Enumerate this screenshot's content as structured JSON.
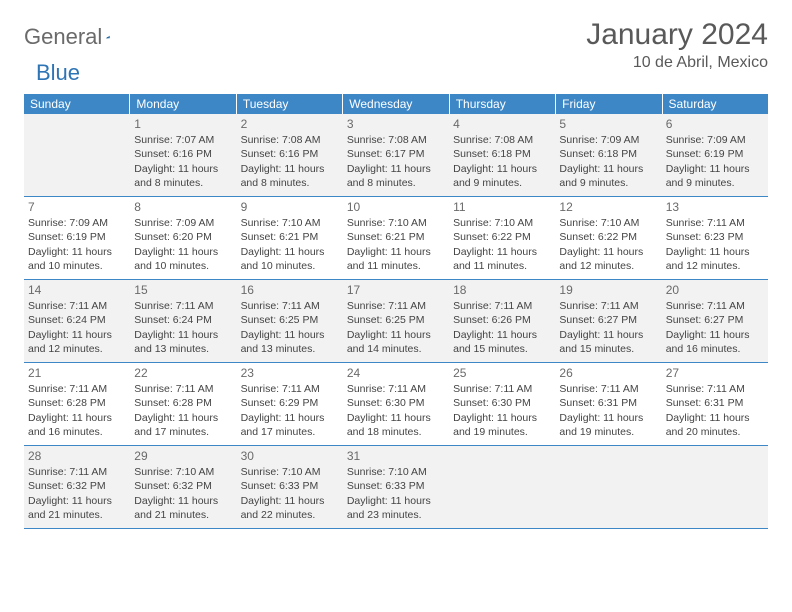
{
  "logo": {
    "general": "General",
    "blue": "Blue"
  },
  "title": "January 2024",
  "location": "10 de Abril, Mexico",
  "colors": {
    "header_bg": "#3d87c7",
    "header_text": "#ffffff",
    "shaded_bg": "#f2f2f2",
    "text": "#444444",
    "title_text": "#595959",
    "logo_gray": "#6a6a6a",
    "logo_blue": "#2e75b6",
    "border": "#3d87c7"
  },
  "weekdays": [
    "Sunday",
    "Monday",
    "Tuesday",
    "Wednesday",
    "Thursday",
    "Friday",
    "Saturday"
  ],
  "weeks": [
    [
      {
        "num": "",
        "lines": []
      },
      {
        "num": "1",
        "lines": [
          "Sunrise: 7:07 AM",
          "Sunset: 6:16 PM",
          "Daylight: 11 hours and 8 minutes."
        ]
      },
      {
        "num": "2",
        "lines": [
          "Sunrise: 7:08 AM",
          "Sunset: 6:16 PM",
          "Daylight: 11 hours and 8 minutes."
        ]
      },
      {
        "num": "3",
        "lines": [
          "Sunrise: 7:08 AM",
          "Sunset: 6:17 PM",
          "Daylight: 11 hours and 8 minutes."
        ]
      },
      {
        "num": "4",
        "lines": [
          "Sunrise: 7:08 AM",
          "Sunset: 6:18 PM",
          "Daylight: 11 hours and 9 minutes."
        ]
      },
      {
        "num": "5",
        "lines": [
          "Sunrise: 7:09 AM",
          "Sunset: 6:18 PM",
          "Daylight: 11 hours and 9 minutes."
        ]
      },
      {
        "num": "6",
        "lines": [
          "Sunrise: 7:09 AM",
          "Sunset: 6:19 PM",
          "Daylight: 11 hours and 9 minutes."
        ]
      }
    ],
    [
      {
        "num": "7",
        "lines": [
          "Sunrise: 7:09 AM",
          "Sunset: 6:19 PM",
          "Daylight: 11 hours and 10 minutes."
        ]
      },
      {
        "num": "8",
        "lines": [
          "Sunrise: 7:09 AM",
          "Sunset: 6:20 PM",
          "Daylight: 11 hours and 10 minutes."
        ]
      },
      {
        "num": "9",
        "lines": [
          "Sunrise: 7:10 AM",
          "Sunset: 6:21 PM",
          "Daylight: 11 hours and 10 minutes."
        ]
      },
      {
        "num": "10",
        "lines": [
          "Sunrise: 7:10 AM",
          "Sunset: 6:21 PM",
          "Daylight: 11 hours and 11 minutes."
        ]
      },
      {
        "num": "11",
        "lines": [
          "Sunrise: 7:10 AM",
          "Sunset: 6:22 PM",
          "Daylight: 11 hours and 11 minutes."
        ]
      },
      {
        "num": "12",
        "lines": [
          "Sunrise: 7:10 AM",
          "Sunset: 6:22 PM",
          "Daylight: 11 hours and 12 minutes."
        ]
      },
      {
        "num": "13",
        "lines": [
          "Sunrise: 7:11 AM",
          "Sunset: 6:23 PM",
          "Daylight: 11 hours and 12 minutes."
        ]
      }
    ],
    [
      {
        "num": "14",
        "lines": [
          "Sunrise: 7:11 AM",
          "Sunset: 6:24 PM",
          "Daylight: 11 hours and 12 minutes."
        ]
      },
      {
        "num": "15",
        "lines": [
          "Sunrise: 7:11 AM",
          "Sunset: 6:24 PM",
          "Daylight: 11 hours and 13 minutes."
        ]
      },
      {
        "num": "16",
        "lines": [
          "Sunrise: 7:11 AM",
          "Sunset: 6:25 PM",
          "Daylight: 11 hours and 13 minutes."
        ]
      },
      {
        "num": "17",
        "lines": [
          "Sunrise: 7:11 AM",
          "Sunset: 6:25 PM",
          "Daylight: 11 hours and 14 minutes."
        ]
      },
      {
        "num": "18",
        "lines": [
          "Sunrise: 7:11 AM",
          "Sunset: 6:26 PM",
          "Daylight: 11 hours and 15 minutes."
        ]
      },
      {
        "num": "19",
        "lines": [
          "Sunrise: 7:11 AM",
          "Sunset: 6:27 PM",
          "Daylight: 11 hours and 15 minutes."
        ]
      },
      {
        "num": "20",
        "lines": [
          "Sunrise: 7:11 AM",
          "Sunset: 6:27 PM",
          "Daylight: 11 hours and 16 minutes."
        ]
      }
    ],
    [
      {
        "num": "21",
        "lines": [
          "Sunrise: 7:11 AM",
          "Sunset: 6:28 PM",
          "Daylight: 11 hours and 16 minutes."
        ]
      },
      {
        "num": "22",
        "lines": [
          "Sunrise: 7:11 AM",
          "Sunset: 6:28 PM",
          "Daylight: 11 hours and 17 minutes."
        ]
      },
      {
        "num": "23",
        "lines": [
          "Sunrise: 7:11 AM",
          "Sunset: 6:29 PM",
          "Daylight: 11 hours and 17 minutes."
        ]
      },
      {
        "num": "24",
        "lines": [
          "Sunrise: 7:11 AM",
          "Sunset: 6:30 PM",
          "Daylight: 11 hours and 18 minutes."
        ]
      },
      {
        "num": "25",
        "lines": [
          "Sunrise: 7:11 AM",
          "Sunset: 6:30 PM",
          "Daylight: 11 hours and 19 minutes."
        ]
      },
      {
        "num": "26",
        "lines": [
          "Sunrise: 7:11 AM",
          "Sunset: 6:31 PM",
          "Daylight: 11 hours and 19 minutes."
        ]
      },
      {
        "num": "27",
        "lines": [
          "Sunrise: 7:11 AM",
          "Sunset: 6:31 PM",
          "Daylight: 11 hours and 20 minutes."
        ]
      }
    ],
    [
      {
        "num": "28",
        "lines": [
          "Sunrise: 7:11 AM",
          "Sunset: 6:32 PM",
          "Daylight: 11 hours and 21 minutes."
        ]
      },
      {
        "num": "29",
        "lines": [
          "Sunrise: 7:10 AM",
          "Sunset: 6:32 PM",
          "Daylight: 11 hours and 21 minutes."
        ]
      },
      {
        "num": "30",
        "lines": [
          "Sunrise: 7:10 AM",
          "Sunset: 6:33 PM",
          "Daylight: 11 hours and 22 minutes."
        ]
      },
      {
        "num": "31",
        "lines": [
          "Sunrise: 7:10 AM",
          "Sunset: 6:33 PM",
          "Daylight: 11 hours and 23 minutes."
        ]
      },
      {
        "num": "",
        "lines": []
      },
      {
        "num": "",
        "lines": []
      },
      {
        "num": "",
        "lines": []
      }
    ]
  ],
  "shaded_week_indices": [
    0,
    2,
    4
  ]
}
